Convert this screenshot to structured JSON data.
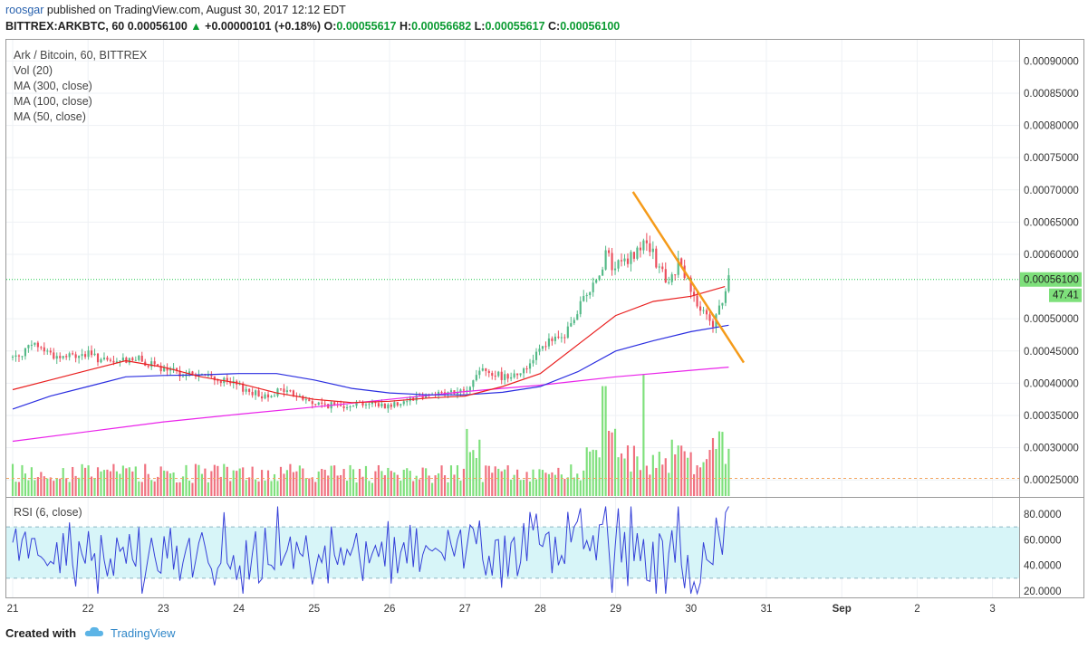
{
  "header": {
    "author": "roosgar",
    "published_text": "published on TradingView.com, August 30, 2017 12:12 EDT",
    "symbol": "BITTREX:ARKBTC, 60",
    "last": "0.00056100",
    "change": "+0.00000101 (+0.18%)",
    "o_label": "O:",
    "o_value": "0.00055617",
    "h_label": "H:",
    "h_value": "0.00056682",
    "l_label": "L:",
    "l_value": "0.00055617",
    "c_label": "C:",
    "c_value": "0.00056100"
  },
  "legend": {
    "title": "Ark / Bitcoin, 60, BITTREX",
    "vol": "Vol (20)",
    "ma300": "MA (300, close)",
    "ma100": "MA (100, close)",
    "ma50": "MA (50, close)",
    "rsi": "RSI (6, close)"
  },
  "footer": {
    "created": "Created with",
    "brand": "TradingView"
  },
  "colors": {
    "up": "#53b987",
    "down": "#eb4d5c",
    "vol_up": "#7ee07b",
    "vol_down": "#f0717f",
    "ma50": "#e91f1f",
    "ma100": "#2b2ee0",
    "ma300": "#ea24ea",
    "trendline": "#f59b1a",
    "rsi_line": "#3540d8",
    "rsi_band": "#d7f5f8",
    "price_line": "#1ec84a",
    "label_bg": "#7ee07b"
  },
  "chart_data": {
    "type": "candlestick",
    "x_ticks": [
      "21",
      "22",
      "23",
      "24",
      "25",
      "26",
      "27",
      "28",
      "29",
      "30",
      "31",
      "Sep",
      "2",
      "3"
    ],
    "y_ticks": [
      "0.00090000",
      "0.00085000",
      "0.00080000",
      "0.00075000",
      "0.00070000",
      "0.00065000",
      "0.00060000",
      "0.00050000",
      "0.00045000",
      "0.00040000",
      "0.00035000",
      "0.00030000",
      "0.00025000"
    ],
    "y_tick_values": [
      0.0009,
      0.00085,
      0.0008,
      0.00075,
      0.0007,
      0.00065,
      0.0006,
      0.0005,
      0.00045,
      0.0004,
      0.00035,
      0.0003,
      0.00025
    ],
    "ylim": [
      0.000225,
      0.00093
    ],
    "last_price": 0.000561,
    "last_price_label": "0.00056100",
    "rsi_current_label": "47.41",
    "price_path": [
      [
        21.0,
        0.00044
      ],
      [
        21.3,
        0.00046
      ],
      [
        21.6,
        0.00044
      ],
      [
        22.0,
        0.000445
      ],
      [
        22.3,
        0.00043
      ],
      [
        22.6,
        0.00044
      ],
      [
        23.0,
        0.00042
      ],
      [
        23.3,
        0.000415
      ],
      [
        23.6,
        0.00041
      ],
      [
        24.0,
        0.000395
      ],
      [
        24.3,
        0.00038
      ],
      [
        24.6,
        0.00039
      ],
      [
        25.0,
        0.000368
      ],
      [
        25.3,
        0.000365
      ],
      [
        25.6,
        0.00037
      ],
      [
        26.0,
        0.000365
      ],
      [
        26.3,
        0.000378
      ],
      [
        26.6,
        0.000385
      ],
      [
        27.0,
        0.000385
      ],
      [
        27.2,
        0.000425
      ],
      [
        27.5,
        0.00041
      ],
      [
        27.8,
        0.00042
      ],
      [
        28.0,
        0.00046
      ],
      [
        28.3,
        0.00047
      ],
      [
        28.5,
        0.00051
      ],
      [
        28.7,
        0.00056
      ],
      [
        28.85,
        0.000595
      ],
      [
        29.0,
        0.00058
      ],
      [
        29.2,
        0.00059
      ],
      [
        29.35,
        0.000625
      ],
      [
        29.5,
        0.000595
      ],
      [
        29.7,
        0.000555
      ],
      [
        29.85,
        0.00059
      ],
      [
        30.0,
        0.000545
      ],
      [
        30.15,
        0.000515
      ],
      [
        30.3,
        0.00049
      ],
      [
        30.45,
        0.00054
      ],
      [
        30.5,
        0.000561
      ]
    ],
    "volume_ylim": [
      0,
      7e-05
    ],
    "ma50": [
      [
        21.0,
        0.00039
      ],
      [
        21.5,
        0.000405
      ],
      [
        22.0,
        0.00042
      ],
      [
        22.5,
        0.000435
      ],
      [
        23.0,
        0.000425
      ],
      [
        23.5,
        0.00041
      ],
      [
        24.0,
        0.0004
      ],
      [
        24.5,
        0.000385
      ],
      [
        25.0,
        0.000375
      ],
      [
        25.5,
        0.00037
      ],
      [
        26.0,
        0.000372
      ],
      [
        26.5,
        0.000377
      ],
      [
        27.0,
        0.00038
      ],
      [
        27.5,
        0.000395
      ],
      [
        28.0,
        0.000415
      ],
      [
        28.5,
        0.00046
      ],
      [
        29.0,
        0.000505
      ],
      [
        29.5,
        0.000527
      ],
      [
        30.0,
        0.000535
      ],
      [
        30.45,
        0.00055
      ]
    ],
    "ma100": [
      [
        21.0,
        0.00036
      ],
      [
        21.5,
        0.00038
      ],
      [
        22.0,
        0.000395
      ],
      [
        22.5,
        0.00041
      ],
      [
        23.0,
        0.000412
      ],
      [
        23.5,
        0.000413
      ],
      [
        24.0,
        0.000415
      ],
      [
        24.5,
        0.000415
      ],
      [
        25.0,
        0.000405
      ],
      [
        25.5,
        0.000392
      ],
      [
        26.0,
        0.000385
      ],
      [
        26.5,
        0.000382
      ],
      [
        27.0,
        0.000382
      ],
      [
        27.5,
        0.000386
      ],
      [
        28.0,
        0.000395
      ],
      [
        28.5,
        0.000418
      ],
      [
        29.0,
        0.00045
      ],
      [
        29.5,
        0.000466
      ],
      [
        30.0,
        0.00048
      ],
      [
        30.5,
        0.00049
      ]
    ],
    "ma300": [
      [
        21.0,
        0.00031
      ],
      [
        22.0,
        0.000325
      ],
      [
        23.0,
        0.00034
      ],
      [
        24.0,
        0.000352
      ],
      [
        25.0,
        0.000363
      ],
      [
        26.0,
        0.000375
      ],
      [
        27.0,
        0.000387
      ],
      [
        28.0,
        0.000397
      ],
      [
        29.0,
        0.00041
      ],
      [
        30.0,
        0.00042
      ],
      [
        30.5,
        0.000425
      ]
    ],
    "trendline": [
      [
        29.23,
        0.000697
      ],
      [
        30.7,
        0.000432
      ]
    ],
    "rsi_ylim": [
      15,
      92
    ],
    "rsi_band": [
      30,
      70
    ],
    "rsi_ticks": [
      "80.0000",
      "60.0000",
      "40.0000",
      "20.0000"
    ],
    "rsi_tick_values": [
      80,
      60,
      40,
      20
    ]
  }
}
